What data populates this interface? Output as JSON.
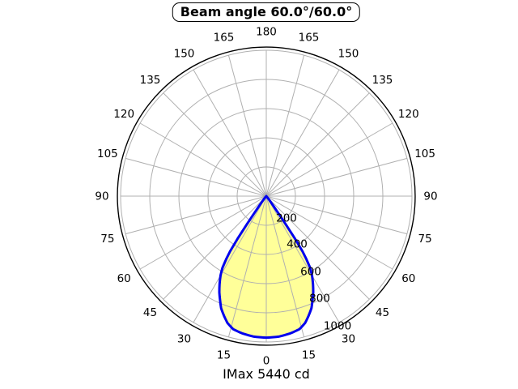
{
  "title": "Beam angle 60.0°/60.0°",
  "footer": "IMax 5440 cd",
  "colors": {
    "background": "#ffffff",
    "grid": "#b0b0b0",
    "outer_ring": "#000000",
    "curve": "#0000ee",
    "curve_fill": "#ffff99",
    "text": "#000000"
  },
  "chart_data": {
    "type": "polar",
    "title": "Beam angle 60.0°/60.0°",
    "subtitle": "IMax 5440 cd",
    "beam_angle_deg": [
      60.0,
      60.0
    ],
    "imax_cd": 5440,
    "angle_zero_position": "bottom",
    "angle_tick_step_deg": 15,
    "angle_tick_labels": [
      0,
      15,
      30,
      45,
      60,
      75,
      90,
      105,
      120,
      135,
      150,
      165,
      180
    ],
    "radial_ticks": [
      200,
      400,
      600,
      800,
      1000
    ],
    "radial_axis_max": 1022,
    "grid": true,
    "profile": {
      "symmetric": true,
      "angles_deg": [
        0,
        5,
        10,
        14,
        17,
        19.5,
        22,
        24,
        26,
        28,
        30,
        31.5,
        32.5,
        33.3,
        34,
        34.6,
        35.2,
        36,
        37,
        38.5,
        40,
        42
      ],
      "values": [
        970,
        967,
        955,
        940,
        910,
        870,
        828,
        780,
        735,
        683,
        628,
        575,
        512,
        452,
        355,
        240,
        150,
        85,
        50,
        25,
        10,
        0
      ]
    }
  }
}
